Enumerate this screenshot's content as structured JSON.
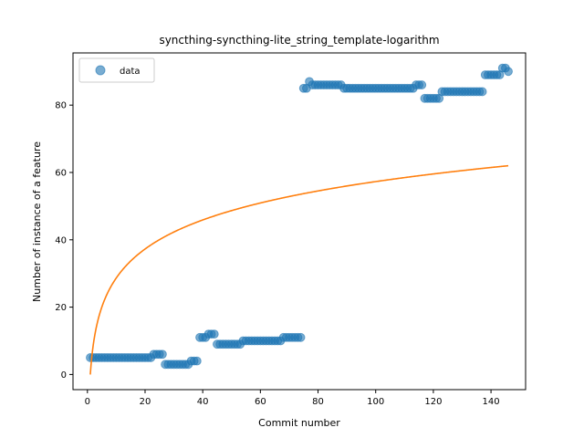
{
  "chart_data": {
    "type": "scatter",
    "title": "syncthing-syncthing-lite_string_template-logarithm",
    "xlabel": "Commit number",
    "ylabel": "Number of instance of a feature",
    "xlim": [
      -5,
      152
    ],
    "ylim": [
      -4.5,
      95.5
    ],
    "xticks": [
      0,
      20,
      40,
      60,
      80,
      100,
      120,
      140
    ],
    "yticks": [
      0,
      20,
      40,
      60,
      80
    ],
    "grid": false,
    "legend": {
      "position": "top-left",
      "entries": [
        "data"
      ]
    },
    "colors": {
      "data": "#1f77b4",
      "fit": "#ff7f0e"
    },
    "series": [
      {
        "name": "data",
        "kind": "scatter",
        "segments": [
          [
            1,
            22,
            5
          ],
          [
            23,
            26,
            6
          ],
          [
            27,
            35,
            3
          ],
          [
            36,
            38,
            4
          ],
          [
            39,
            41,
            11
          ],
          [
            42,
            44,
            12
          ],
          [
            45,
            53,
            9
          ],
          [
            54,
            67,
            10
          ],
          [
            68,
            74,
            11
          ],
          [
            75,
            76,
            85
          ],
          [
            77,
            77,
            87
          ],
          [
            78,
            88,
            86
          ],
          [
            89,
            113,
            85
          ],
          [
            114,
            116,
            86
          ],
          [
            117,
            122,
            82
          ],
          [
            123,
            137,
            84
          ],
          [
            138,
            143,
            89
          ],
          [
            144,
            145,
            91
          ],
          [
            146,
            146,
            90
          ]
        ]
      },
      {
        "kind": "line",
        "model": "logarithm",
        "a": 12.44,
        "x_range": [
          1,
          146
        ]
      }
    ]
  }
}
